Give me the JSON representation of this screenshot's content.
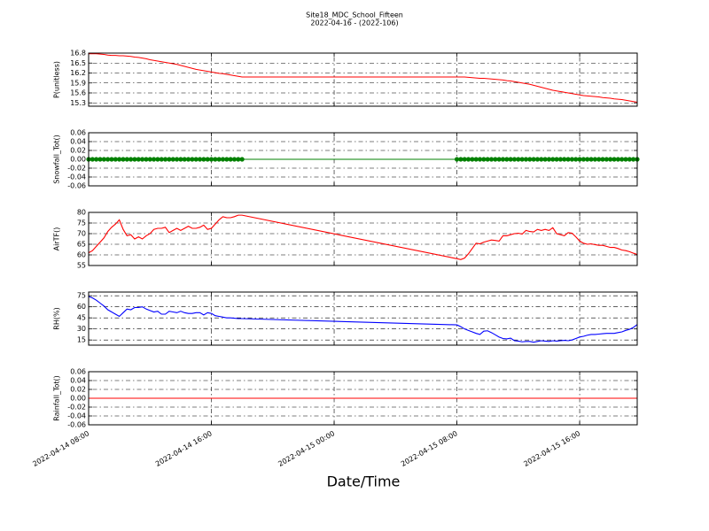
{
  "chart_data": {
    "type": "line",
    "title": "Site18_MDC_School_Fifteen",
    "subtitle": "2022-04-16 - (2022-106)",
    "xlabel": "Date/Time",
    "grid": true,
    "xlim": [
      "2022-04-14 08:00",
      "2022-04-15 19:45"
    ],
    "xticks": [
      "2022-04-14 08:00",
      "2022-04-14 16:00",
      "2022-04-15 00:00",
      "2022-04-15 08:00",
      "2022-04-15 16:00"
    ],
    "x": [
      "2022-04-14 08:00",
      "2022-04-14 08:15",
      "2022-04-14 08:30",
      "2022-04-14 08:45",
      "2022-04-14 09:00",
      "2022-04-14 09:15",
      "2022-04-14 09:30",
      "2022-04-14 09:45",
      "2022-04-14 10:00",
      "2022-04-14 10:15",
      "2022-04-14 10:30",
      "2022-04-14 10:45",
      "2022-04-14 11:00",
      "2022-04-14 11:15",
      "2022-04-14 11:30",
      "2022-04-14 11:45",
      "2022-04-14 12:00",
      "2022-04-14 12:15",
      "2022-04-14 12:30",
      "2022-04-14 12:45",
      "2022-04-14 13:00",
      "2022-04-14 13:15",
      "2022-04-14 13:30",
      "2022-04-14 13:45",
      "2022-04-14 14:00",
      "2022-04-14 14:15",
      "2022-04-14 14:30",
      "2022-04-14 14:45",
      "2022-04-14 15:00",
      "2022-04-14 15:15",
      "2022-04-14 15:30",
      "2022-04-14 15:45",
      "2022-04-14 16:00",
      "2022-04-14 16:15",
      "2022-04-14 16:30",
      "2022-04-14 16:45",
      "2022-04-14 17:00",
      "2022-04-14 17:15",
      "2022-04-14 17:30",
      "2022-04-14 17:45",
      "2022-04-14 18:00",
      "2022-04-15 08:00",
      "2022-04-15 08:15",
      "2022-04-15 08:30",
      "2022-04-15 08:45",
      "2022-04-15 09:00",
      "2022-04-15 09:15",
      "2022-04-15 09:30",
      "2022-04-15 09:45",
      "2022-04-15 10:00",
      "2022-04-15 10:15",
      "2022-04-15 10:30",
      "2022-04-15 10:45",
      "2022-04-15 11:00",
      "2022-04-15 11:15",
      "2022-04-15 11:30",
      "2022-04-15 11:45",
      "2022-04-15 12:00",
      "2022-04-15 12:15",
      "2022-04-15 12:30",
      "2022-04-15 12:45",
      "2022-04-15 13:00",
      "2022-04-15 13:15",
      "2022-04-15 13:30",
      "2022-04-15 13:45",
      "2022-04-15 14:00",
      "2022-04-15 14:15",
      "2022-04-15 14:30",
      "2022-04-15 14:45",
      "2022-04-15 15:00",
      "2022-04-15 15:15",
      "2022-04-15 15:30",
      "2022-04-15 15:45",
      "2022-04-15 16:00",
      "2022-04-15 16:15",
      "2022-04-15 16:30",
      "2022-04-15 16:45",
      "2022-04-15 17:00",
      "2022-04-15 17:15",
      "2022-04-15 17:30",
      "2022-04-15 17:45",
      "2022-04-15 18:00",
      "2022-04-15 18:15",
      "2022-04-15 18:30",
      "2022-04-15 18:45",
      "2022-04-15 19:00",
      "2022-04-15 19:15",
      "2022-04-15 19:30",
      "2022-04-15 19:45"
    ],
    "panels": [
      {
        "ylabel": "P(unitless)",
        "ylim": [
          15.2,
          16.8
        ],
        "yticks": [
          15.3,
          15.6,
          15.9,
          16.2,
          16.5,
          16.8
        ],
        "series": [
          {
            "color": "#ff0000",
            "marker": false,
            "values": [
              16.78,
              16.78,
              16.78,
              16.77,
              16.76,
              16.74,
              16.73,
              16.73,
              16.72,
              16.72,
              16.71,
              16.7,
              16.68,
              16.67,
              16.65,
              16.63,
              16.6,
              16.58,
              16.56,
              16.54,
              16.52,
              16.5,
              16.48,
              16.46,
              16.43,
              16.4,
              16.37,
              16.34,
              16.31,
              16.29,
              16.27,
              16.25,
              16.23,
              16.21,
              16.19,
              16.18,
              16.16,
              16.14,
              16.12,
              16.1,
              16.08,
              16.08,
              16.08,
              16.08,
              16.07,
              16.06,
              16.05,
              16.04,
              16.04,
              16.03,
              16.02,
              16.01,
              16.0,
              15.99,
              15.97,
              15.96,
              15.94,
              15.92,
              15.9,
              15.88,
              15.86,
              15.83,
              15.8,
              15.77,
              15.74,
              15.71,
              15.68,
              15.66,
              15.64,
              15.62,
              15.6,
              15.58,
              15.56,
              15.54,
              15.52,
              15.51,
              15.5,
              15.49,
              15.48,
              15.46,
              15.45,
              15.44,
              15.42,
              15.41,
              15.4,
              15.38,
              15.36,
              15.34,
              15.32
            ]
          }
        ]
      },
      {
        "ylabel": "Snowfall_Tot()",
        "ylim": [
          -0.06,
          0.06
        ],
        "yticks": [
          -0.06,
          -0.04,
          -0.02,
          {
            "value": 0,
            "label": "0.00"
          },
          0.02,
          0.04,
          0.06
        ],
        "series": [
          {
            "color": "#008000",
            "marker": true,
            "values": [
              0,
              0,
              0,
              0,
              0,
              0,
              0,
              0,
              0,
              0,
              0,
              0,
              0,
              0,
              0,
              0,
              0,
              0,
              0,
              0,
              0,
              0,
              0,
              0,
              0,
              0,
              0,
              0,
              0,
              0,
              0,
              0,
              0,
              0,
              0,
              0,
              0,
              0,
              0,
              0,
              0,
              0,
              0,
              0,
              0,
              0,
              0,
              0,
              0,
              0,
              0,
              0,
              0,
              0,
              0,
              0,
              0,
              0,
              0,
              0,
              0,
              0,
              0,
              0,
              0,
              0,
              0,
              0,
              0,
              0,
              0,
              0,
              0,
              0,
              0,
              0,
              0,
              0,
              0,
              0,
              0,
              0,
              0,
              0,
              0,
              0,
              0,
              0,
              0
            ]
          }
        ]
      },
      {
        "ylabel": "AirTF()",
        "ylim": [
          55,
          80
        ],
        "yticks": [
          55,
          60,
          65,
          70,
          75,
          80
        ],
        "series": [
          {
            "color": "#ff0000",
            "marker": false,
            "values": [
              61,
              62,
              64,
              66,
              68,
              71,
              73,
              74.5,
              76.5,
              72,
              69,
              69.5,
              67.5,
              68.5,
              67.5,
              69,
              70,
              72,
              72.5,
              72.5,
              73,
              70.5,
              71.5,
              72.5,
              71.5,
              72.5,
              73.5,
              72.5,
              72.5,
              73,
              74,
              72,
              72.5,
              74.5,
              76.5,
              78,
              77.5,
              77.5,
              78,
              78.7,
              78.7,
              58.2,
              57.8,
              58.5,
              60.5,
              63,
              65.5,
              65.2,
              66,
              66.5,
              67,
              66.8,
              66.5,
              69,
              69,
              69.5,
              70,
              70.2,
              69.8,
              71.5,
              71,
              70.8,
              72,
              71.5,
              72,
              71.5,
              72.8,
              70,
              69.5,
              69,
              70.5,
              70.2,
              68.5,
              66.5,
              65.5,
              65,
              65.2,
              64.8,
              64.5,
              64.5,
              64,
              63.5,
              63.5,
              63,
              62.3,
              62,
              61.5,
              60.8,
              60.2
            ]
          }
        ]
      },
      {
        "ylabel": "RH(%)",
        "ylim": [
          8,
          80
        ],
        "yticks": [
          15,
          30,
          45,
          60,
          75
        ],
        "series": [
          {
            "color": "#0000ff",
            "marker": false,
            "values": [
              74,
              72,
              69,
              65,
              61,
              56,
              53,
              50,
              47,
              52,
              57,
              56,
              59,
              59,
              60,
              57,
              55,
              53,
              54,
              50,
              50,
              54,
              53,
              52,
              54,
              52,
              51,
              51,
              52,
              52,
              49,
              52,
              51,
              48,
              47,
              46,
              45,
              45,
              44.5,
              44,
              44,
              35.5,
              33,
              30,
              28,
              26,
              24,
              22.5,
              27,
              27.5,
              25,
              22,
              19,
              17,
              16.5,
              17.5,
              14,
              13.5,
              12.5,
              13,
              13,
              12,
              13,
              14,
              13.5,
              13,
              14,
              13.5,
              14,
              14.5,
              14,
              15,
              17,
              19,
              20,
              21.5,
              22.5,
              22.5,
              23,
              23.5,
              24,
              24,
              24,
              25,
              26,
              28,
              29.5,
              32,
              36
            ]
          }
        ]
      },
      {
        "ylabel": "Rainfall_Tot()",
        "ylim": [
          -0.06,
          0.06
        ],
        "yticks": [
          -0.06,
          -0.04,
          -0.02,
          {
            "value": 0,
            "label": "0.00"
          },
          0.02,
          0.04,
          0.06
        ],
        "series": [
          {
            "color": "#ff0000",
            "marker": false,
            "values": [
              0,
              0,
              0,
              0,
              0,
              0,
              0,
              0,
              0,
              0,
              0,
              0,
              0,
              0,
              0,
              0,
              0,
              0,
              0,
              0,
              0,
              0,
              0,
              0,
              0,
              0,
              0,
              0,
              0,
              0,
              0,
              0,
              0,
              0,
              0,
              0,
              0,
              0,
              0,
              0,
              0,
              0,
              0,
              0,
              0,
              0,
              0,
              0,
              0,
              0,
              0,
              0,
              0,
              0,
              0,
              0,
              0,
              0,
              0,
              0,
              0,
              0,
              0,
              0,
              0,
              0,
              0,
              0,
              0,
              0,
              0,
              0,
              0,
              0,
              0,
              0,
              0,
              0,
              0,
              0,
              0,
              0,
              0,
              0,
              0,
              0,
              0,
              0,
              0
            ]
          }
        ]
      }
    ]
  }
}
